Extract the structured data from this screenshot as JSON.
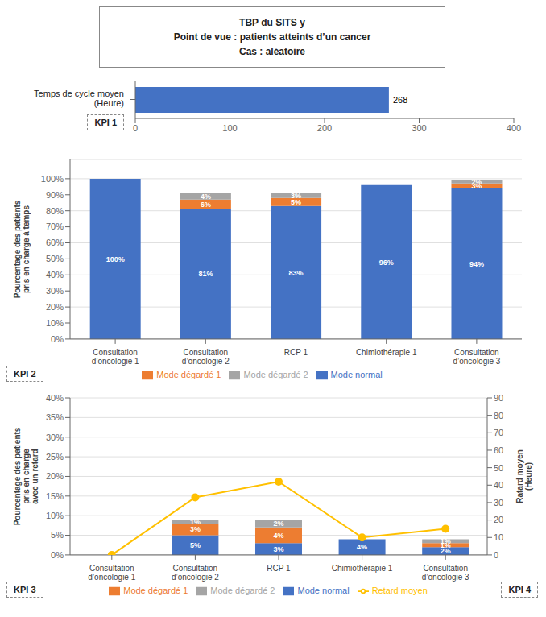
{
  "chart_data": [
    {
      "type": "bar",
      "orientation": "horizontal",
      "title": "TBP du SITS y\nPoint de vue : patients atteints d’un cancer\nCas : aléatoire",
      "categories": [
        null
      ],
      "values": [
        268
      ],
      "color": "#4472c4",
      "xlim": [
        0,
        400
      ],
      "xticks": [
        0,
        100,
        200,
        300,
        400
      ],
      "ylabel": "Temps de cycle moyen\n(Heure)",
      "data_labels": true,
      "annotations": [
        "KPI 1"
      ]
    },
    {
      "type": "bar",
      "stacked": true,
      "categories": [
        "Consultation\nd’oncologie 1",
        "Consultation\nd’oncologie 2",
        "RCP 1",
        "Chimiothérapie 1",
        "Consultation\nd’oncologie 3"
      ],
      "series": [
        {
          "name": "Mode normal",
          "color": "#4472c4",
          "values": [
            100,
            81,
            83,
            96,
            94
          ],
          "value_labels": [
            "100%",
            "81%",
            "83%",
            "96%",
            "94%"
          ]
        },
        {
          "name": "Mode dégardé 1",
          "color": "#ed7d31",
          "values": [
            0,
            6,
            5,
            0,
            3
          ],
          "value_labels": [
            null,
            "6%",
            "5%",
            null,
            "3%"
          ]
        },
        {
          "name": "Mode dégardé 2",
          "color": "#a5a5a5",
          "values": [
            0,
            4,
            3,
            0,
            2
          ],
          "value_labels": [
            null,
            "4%",
            "3%",
            null,
            "2%"
          ]
        }
      ],
      "ylim": [
        0,
        112
      ],
      "yticks": [
        {
          "value": 0,
          "label": "0%"
        },
        {
          "value": 10,
          "label": "10%"
        },
        {
          "value": 20,
          "label": "20%"
        },
        {
          "value": 30,
          "label": "30%"
        },
        {
          "value": 40,
          "label": "40%"
        },
        {
          "value": 50,
          "label": "50%"
        },
        {
          "value": 60,
          "label": "60%"
        },
        {
          "value": 70,
          "label": "70%"
        },
        {
          "value": 80,
          "label": "80%"
        },
        {
          "value": 90,
          "label": "90%"
        },
        {
          "value": 100,
          "label": "100%"
        }
      ],
      "ylabel": "Pourcentage des patients\npris en charge à temps",
      "grid": true,
      "legend": "bottom",
      "data_labels": true,
      "annotations": [
        "KPI 2"
      ]
    },
    {
      "type": "bar",
      "stacked": true,
      "categories": [
        "Consultation\nd’oncologie 1",
        "Consultation\nd’oncologie 2",
        "RCP 1",
        "Chimiothérapie 1",
        "Consultation\nd’oncologie 3"
      ],
      "series": [
        {
          "name": "Mode normal",
          "color": "#4472c4",
          "values": [
            0,
            5,
            3,
            4,
            2
          ],
          "value_labels": [
            null,
            "5%",
            "3%",
            "4%",
            "2%"
          ]
        },
        {
          "name": "Mode dégardé 1",
          "color": "#ed7d31",
          "values": [
            0,
            3,
            4,
            0,
            1
          ],
          "value_labels": [
            null,
            "3%",
            "4%",
            null,
            "1%"
          ]
        },
        {
          "name": "Mode dégardé 2",
          "color": "#a5a5a5",
          "values": [
            0,
            1,
            2,
            0,
            1
          ],
          "value_labels": [
            null,
            "1%",
            "2%",
            null,
            "1%"
          ]
        },
        {
          "name": "Retard moyen",
          "type": "line",
          "axis": "y2",
          "color": "#ffc000",
          "marker": "circle",
          "data_labels": false,
          "values": [
            0,
            33,
            42,
            10,
            15
          ]
        }
      ],
      "ylim": [
        0,
        40
      ],
      "yticks": [
        {
          "value": 0,
          "label": "0%"
        },
        {
          "value": 5,
          "label": "5%"
        },
        {
          "value": 10,
          "label": "10%"
        },
        {
          "value": 15,
          "label": "15%"
        },
        {
          "value": 20,
          "label": "20%"
        },
        {
          "value": 25,
          "label": "25%"
        },
        {
          "value": 30,
          "label": "30%"
        },
        {
          "value": 35,
          "label": "35%"
        },
        {
          "value": 40,
          "label": "40%"
        }
      ],
      "y2lim": [
        0,
        90
      ],
      "y2ticks": [
        0,
        10,
        20,
        30,
        40,
        50,
        60,
        70,
        80,
        90
      ],
      "ylabel": "Pourcentage des patients\npris en charge\navec un retard",
      "y2label": "Ratard moyen\n(Heure)",
      "grid": true,
      "legend": "bottom",
      "data_labels": true,
      "annotations": [
        "KPI 3",
        "KPI 4"
      ]
    }
  ]
}
